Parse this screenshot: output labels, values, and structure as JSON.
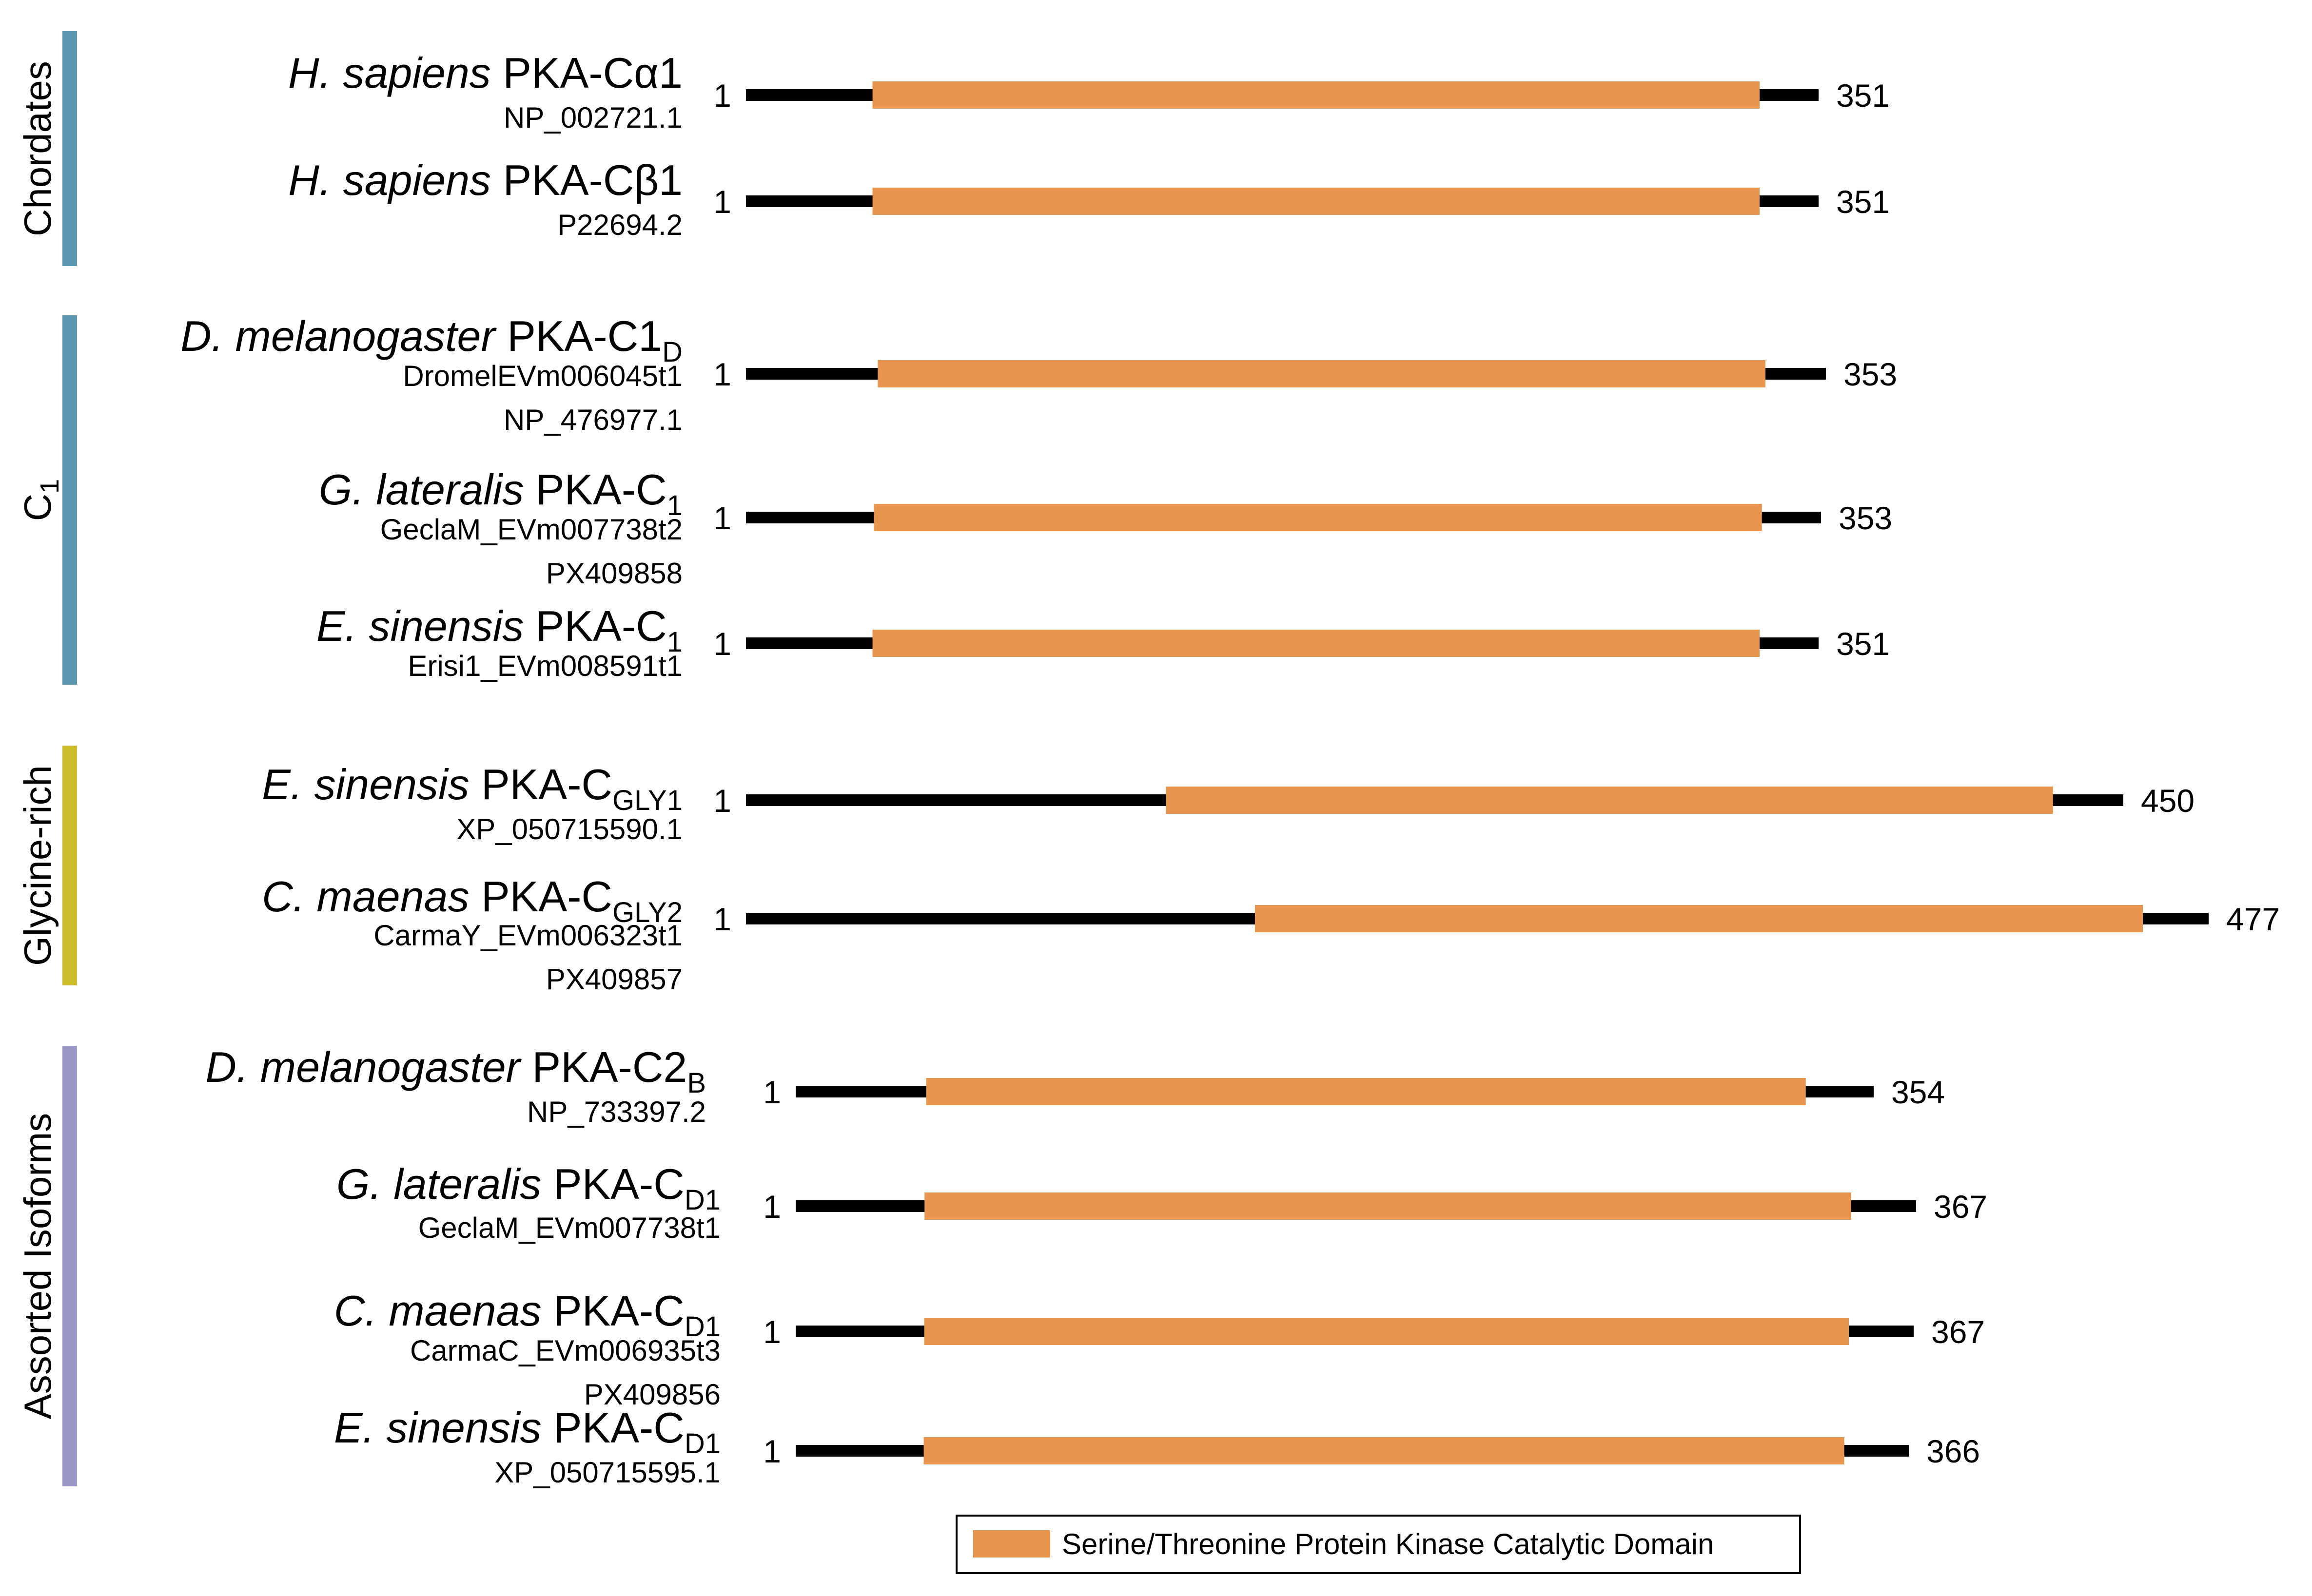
{
  "groups": [
    {
      "label": "Chordates",
      "label_sub": "",
      "color": "#5b96b3"
    },
    {
      "label": "C",
      "label_sub": "1",
      "color": "#5b96b3"
    },
    {
      "label": "Glycine-rich",
      "label_sub": "",
      "color": "#cbbb2a"
    },
    {
      "label": "Assorted Isoforms",
      "label_sub": "",
      "color": "#9897c5"
    }
  ],
  "proteins": [
    {
      "species": "H. sapiens",
      "name": "PKA-Cα1",
      "sub": "",
      "accessions": [
        "NP_002721.1"
      ],
      "start": "1",
      "length": "351",
      "domain": [
        0.118,
        0.945
      ]
    },
    {
      "species": "H. sapiens",
      "name": "PKA-Cβ1",
      "sub": "",
      "accessions": [
        "P22694.2"
      ],
      "start": "1",
      "length": "351",
      "domain": [
        0.118,
        0.945
      ]
    },
    {
      "species": "D. melanogaster",
      "name": "PKA-C1",
      "sub": "D",
      "accessions": [
        "DromelEVm006045t1",
        "NP_476977.1"
      ],
      "start": "1",
      "length": "353",
      "domain": [
        0.122,
        0.944
      ]
    },
    {
      "species": "G. lateralis",
      "name": "PKA-C",
      "sub": "1",
      "accessions": [
        "GeclaM_EVm007738t2",
        "PX409858"
      ],
      "start": "1",
      "length": "353",
      "domain": [
        0.119,
        0.945
      ]
    },
    {
      "species": "E. sinensis",
      "name": "PKA-C",
      "sub": "1",
      "accessions": [
        "Erisi1_EVm008591t1"
      ],
      "start": "1",
      "length": "351",
      "domain": [
        0.118,
        0.945
      ]
    },
    {
      "species": "E. sinensis",
      "name": "PKA-C",
      "sub": "GLY1",
      "accessions": [
        "XP_050715590.1"
      ],
      "start": "1",
      "length": "450",
      "domain": [
        0.305,
        0.949
      ]
    },
    {
      "species": "C. maenas",
      "name": "PKA-C",
      "sub": "GLY2",
      "accessions": [
        "CarmaY_EVm006323t1",
        "PX409857"
      ],
      "start": "1",
      "length": "477",
      "domain": [
        0.348,
        0.955
      ]
    },
    {
      "species": "D. melanogaster",
      "name": "PKA-C2",
      "sub": "B",
      "accessions": [
        "NP_733397.2"
      ],
      "start": "1",
      "length": "354",
      "domain": [
        0.121,
        0.937
      ]
    },
    {
      "species": "G. lateralis",
      "name": "PKA-C",
      "sub": "D1",
      "accessions": [
        "GeclaM_EVm007738t1"
      ],
      "start": "1",
      "length": "367",
      "domain": [
        0.115,
        0.942
      ]
    },
    {
      "species": "C. maenas",
      "name": "PKA-C",
      "sub": "D1",
      "accessions": [
        "CarmaC_EVm006935t3",
        "PX409856"
      ],
      "start": "1",
      "length": "367",
      "domain": [
        0.115,
        0.942
      ]
    },
    {
      "species": "E. sinensis",
      "name": "PKA-C",
      "sub": "D1",
      "accessions": [
        "XP_050715595.1"
      ],
      "start": "1",
      "length": "366",
      "domain": [
        0.115,
        0.942
      ]
    }
  ],
  "legend": {
    "label": "Serine/Threonine Protein Kinase Catalytic Domain",
    "color": "#e8954f"
  },
  "colors": {
    "backbone": "#000000",
    "domain": "#e8954f"
  }
}
